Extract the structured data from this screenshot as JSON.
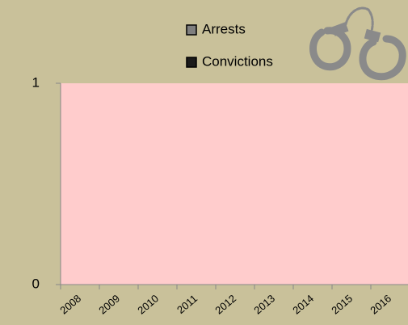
{
  "chart_data": {
    "type": "bar",
    "categories": [
      "2008",
      "2009",
      "2010",
      "2011",
      "2012",
      "2013",
      "2014",
      "2015",
      "2016"
    ],
    "series": [
      {
        "name": "Arrests",
        "color": "#7f7f7f",
        "values": [
          0,
          0,
          0,
          0,
          0,
          0,
          0,
          0,
          0
        ]
      },
      {
        "name": "Convictions",
        "color": "#1a1a1a",
        "values": [
          0,
          0,
          0,
          0,
          0,
          0,
          0,
          0,
          0
        ]
      }
    ],
    "ylim": [
      0,
      1
    ],
    "yticks": [
      0,
      1
    ],
    "plot_background": "#ffcccc",
    "legend": "top"
  }
}
